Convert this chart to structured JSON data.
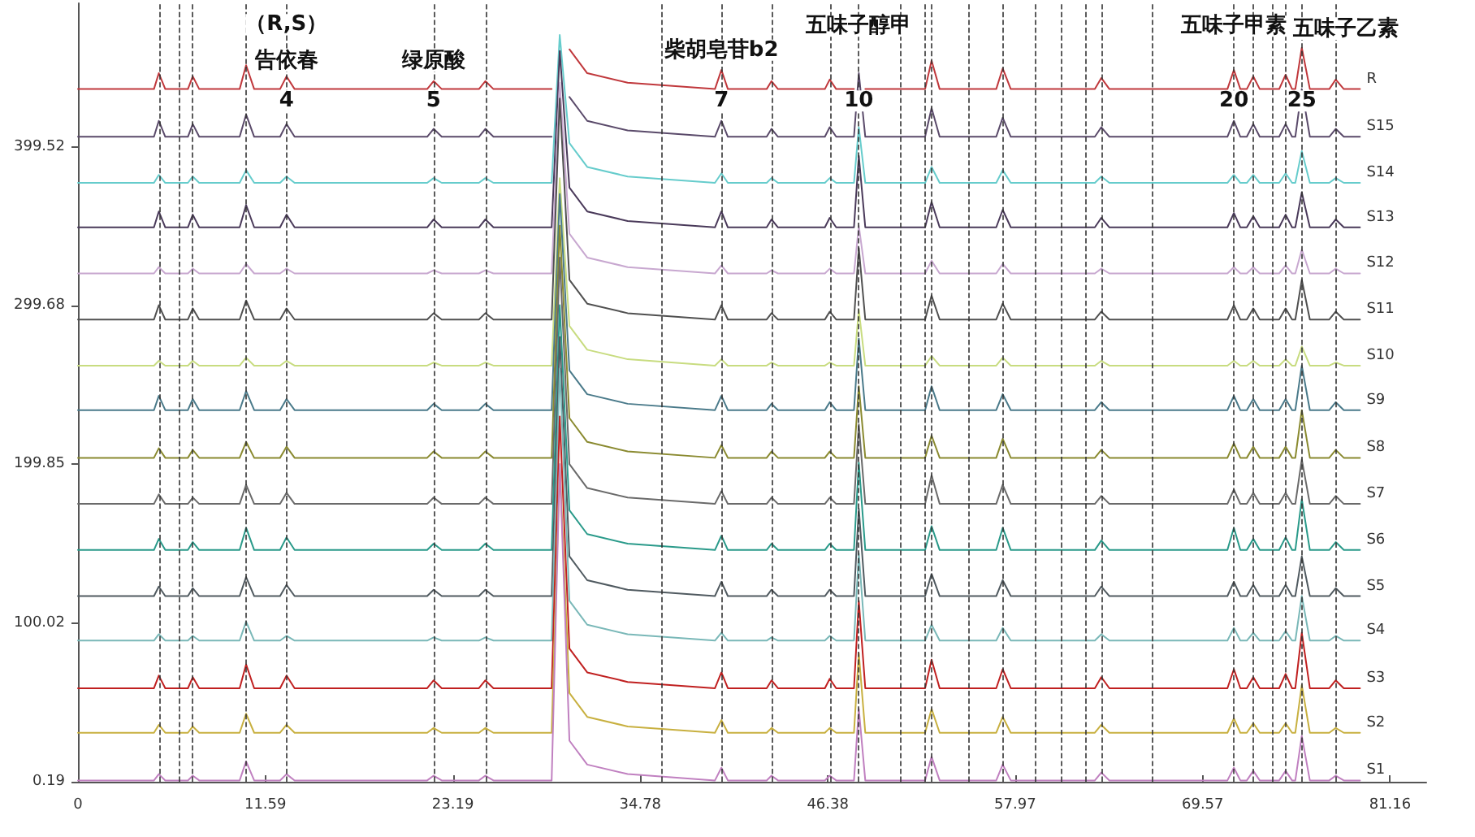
{
  "chart_data": {
    "type": "line",
    "x": [
      0,
      4.7,
      5.0,
      5.4,
      6.8,
      7.1,
      7.5,
      10.0,
      10.4,
      10.9,
      12.5,
      12.9,
      13.4,
      21.6,
      22.0,
      22.5,
      24.8,
      25.2,
      25.7,
      29.3,
      29.8,
      30.4,
      31.5,
      34.0,
      39.4,
      39.8,
      40.2,
      42.6,
      42.9,
      43.3,
      46.2,
      46.5,
      46.9,
      48.0,
      48.3,
      48.7,
      52.4,
      52.8,
      53.3,
      56.8,
      57.2,
      57.7,
      62.9,
      63.3,
      63.8,
      71.1,
      71.5,
      71.9,
      72.3,
      72.7,
      73.1,
      74.3,
      74.7,
      75.1,
      75.3,
      75.7,
      76.2,
      77.4,
      77.8,
      78.3,
      79.3
    ],
    "series": [
      {
        "name": "R",
        "color": "#c0383c",
        "values": [
          436,
          436,
          446,
          436,
          436,
          444,
          436,
          436,
          451,
          436,
          436,
          444,
          436,
          436,
          441,
          436,
          436,
          441,
          436,
          436,
          null,
          461,
          446,
          440,
          436,
          448,
          436,
          436,
          441,
          436,
          436,
          442,
          436,
          436,
          null,
          436,
          436,
          454,
          436,
          436,
          449,
          436,
          436,
          443,
          436,
          436,
          448,
          436,
          436,
          444,
          436,
          436,
          445,
          436,
          436,
          462,
          436,
          436,
          442,
          436,
          436
        ]
      },
      {
        "name": "S15",
        "color": "#5a4a6a",
        "values": [
          406,
          406,
          416,
          406,
          406,
          414,
          406,
          406,
          420,
          406,
          406,
          414,
          406,
          406,
          411,
          406,
          406,
          411,
          406,
          406,
          null,
          431,
          416,
          410,
          406,
          416,
          406,
          406,
          411,
          406,
          406,
          412,
          406,
          406,
          446,
          406,
          406,
          424,
          406,
          406,
          418,
          406,
          406,
          412,
          406,
          406,
          416,
          406,
          406,
          414,
          406,
          406,
          414,
          406,
          406,
          436,
          406,
          406,
          411,
          406,
          406
        ]
      },
      {
        "name": "S14",
        "color": "#66cccc",
        "values": [
          377,
          377,
          382,
          377,
          377,
          381,
          377,
          377,
          385,
          377,
          377,
          381,
          377,
          377,
          380,
          377,
          377,
          380,
          377,
          377,
          470,
          402,
          387,
          381,
          377,
          383,
          377,
          377,
          380,
          377,
          377,
          380,
          377,
          377,
          412,
          377,
          377,
          387,
          377,
          377,
          385,
          377,
          377,
          381,
          377,
          377,
          382,
          377,
          377,
          382,
          377,
          377,
          383,
          377,
          377,
          397,
          377,
          377,
          380,
          377,
          377
        ]
      },
      {
        "name": "S13",
        "color": "#4a3a5a",
        "values": [
          349,
          349,
          359,
          349,
          349,
          357,
          349,
          349,
          363,
          349,
          349,
          357,
          349,
          349,
          354,
          349,
          349,
          354,
          349,
          349,
          460,
          374,
          359,
          353,
          349,
          359,
          349,
          349,
          354,
          349,
          349,
          355,
          349,
          349,
          394,
          349,
          349,
          365,
          349,
          349,
          360,
          349,
          349,
          355,
          349,
          349,
          358,
          349,
          349,
          356,
          349,
          349,
          357,
          349,
          349,
          371,
          349,
          349,
          354,
          349,
          349
        ]
      },
      {
        "name": "S12",
        "color": "#c8a8d0",
        "values": [
          320,
          320,
          324,
          320,
          320,
          323,
          320,
          320,
          326,
          320,
          320,
          323,
          320,
          320,
          322,
          320,
          320,
          322,
          320,
          320,
          440,
          345,
          330,
          324,
          320,
          325,
          320,
          320,
          322,
          320,
          320,
          323,
          320,
          320,
          350,
          320,
          320,
          328,
          320,
          320,
          326,
          320,
          320,
          323,
          320,
          320,
          324,
          320,
          320,
          324,
          320,
          320,
          325,
          320,
          320,
          335,
          320,
          320,
          323,
          320,
          320
        ]
      },
      {
        "name": "S11",
        "color": "#505050",
        "values": [
          291,
          291,
          300,
          291,
          291,
          298,
          291,
          291,
          303,
          291,
          291,
          298,
          291,
          291,
          295,
          291,
          291,
          295,
          291,
          291,
          430,
          316,
          301,
          295,
          291,
          300,
          291,
          291,
          295,
          291,
          291,
          296,
          291,
          291,
          336,
          291,
          291,
          306,
          291,
          291,
          301,
          291,
          291,
          296,
          291,
          291,
          300,
          291,
          291,
          298,
          291,
          291,
          298,
          291,
          291,
          316,
          291,
          291,
          296,
          291,
          291
        ]
      },
      {
        "name": "S10",
        "color": "#c8dc80",
        "values": [
          262,
          262,
          265,
          262,
          262,
          265,
          262,
          262,
          267,
          262,
          262,
          265,
          262,
          262,
          264,
          262,
          262,
          264,
          262,
          262,
          380,
          287,
          272,
          266,
          262,
          266,
          262,
          262,
          264,
          262,
          262,
          264,
          262,
          262,
          297,
          262,
          262,
          268,
          262,
          262,
          267,
          262,
          262,
          265,
          262,
          262,
          265,
          262,
          262,
          265,
          262,
          262,
          266,
          262,
          262,
          274,
          262,
          262,
          264,
          262,
          262
        ]
      },
      {
        "name": "S9",
        "color": "#4a7a8a",
        "values": [
          234,
          234,
          243,
          234,
          234,
          241,
          234,
          234,
          246,
          234,
          234,
          241,
          234,
          234,
          238,
          234,
          234,
          238,
          234,
          234,
          370,
          259,
          244,
          238,
          234,
          243,
          234,
          234,
          238,
          234,
          234,
          239,
          234,
          234,
          279,
          234,
          234,
          249,
          234,
          234,
          244,
          234,
          234,
          239,
          234,
          234,
          243,
          234,
          234,
          241,
          234,
          234,
          241,
          234,
          234,
          262,
          234,
          234,
          239,
          234,
          234
        ]
      },
      {
        "name": "S8",
        "color": "#8a8a30",
        "values": [
          204,
          204,
          210,
          204,
          204,
          209,
          204,
          204,
          214,
          204,
          204,
          211,
          204,
          204,
          208,
          204,
          204,
          208,
          204,
          204,
          350,
          229,
          214,
          208,
          204,
          212,
          204,
          204,
          208,
          204,
          204,
          208,
          204,
          204,
          249,
          204,
          204,
          218,
          204,
          204,
          216,
          204,
          204,
          209,
          204,
          204,
          213,
          204,
          204,
          211,
          204,
          204,
          211,
          204,
          204,
          234,
          204,
          204,
          209,
          204,
          204
        ]
      },
      {
        "name": "S7",
        "color": "#6a6a6a",
        "values": [
          175,
          175,
          181,
          175,
          175,
          179,
          175,
          175,
          187,
          175,
          175,
          182,
          175,
          175,
          179,
          175,
          175,
          179,
          175,
          175,
          330,
          200,
          185,
          179,
          175,
          183,
          175,
          175,
          179,
          175,
          175,
          179,
          175,
          175,
          225,
          175,
          175,
          193,
          175,
          175,
          187,
          175,
          175,
          180,
          175,
          175,
          184,
          175,
          175,
          182,
          175,
          175,
          182,
          175,
          175,
          203,
          175,
          175,
          180,
          175,
          175
        ]
      },
      {
        "name": "S6",
        "color": "#2a9a8a",
        "values": [
          146,
          146,
          153,
          146,
          146,
          151,
          146,
          146,
          160,
          146,
          146,
          154,
          146,
          146,
          150,
          146,
          146,
          150,
          146,
          146,
          300,
          171,
          156,
          150,
          146,
          155,
          146,
          146,
          150,
          146,
          146,
          150,
          146,
          146,
          201,
          146,
          146,
          161,
          146,
          146,
          160,
          146,
          146,
          152,
          146,
          146,
          160,
          146,
          146,
          153,
          146,
          146,
          154,
          146,
          146,
          178,
          146,
          146,
          151,
          146,
          146
        ]
      },
      {
        "name": "S5",
        "color": "#505a60",
        "values": [
          117,
          117,
          123,
          117,
          117,
          122,
          117,
          117,
          129,
          117,
          117,
          124,
          117,
          117,
          121,
          117,
          117,
          121,
          117,
          117,
          280,
          142,
          127,
          121,
          117,
          126,
          117,
          117,
          121,
          117,
          117,
          121,
          117,
          117,
          172,
          117,
          117,
          131,
          117,
          117,
          127,
          117,
          117,
          123,
          117,
          117,
          126,
          117,
          117,
          124,
          117,
          117,
          124,
          117,
          117,
          142,
          117,
          117,
          122,
          117,
          117
        ]
      },
      {
        "name": "S4",
        "color": "#7ab8b8",
        "values": [
          89,
          89,
          93,
          89,
          89,
          92,
          89,
          89,
          101,
          89,
          89,
          92,
          89,
          89,
          91,
          89,
          89,
          91,
          89,
          89,
          260,
          114,
          99,
          93,
          89,
          94,
          89,
          89,
          91,
          89,
          89,
          92,
          89,
          89,
          144,
          89,
          89,
          99,
          89,
          89,
          97,
          89,
          89,
          93,
          89,
          89,
          97,
          89,
          89,
          94,
          89,
          89,
          95,
          89,
          89,
          117,
          89,
          89,
          92,
          89,
          89
        ]
      },
      {
        "name": "S3",
        "color": "#c02020",
        "values": [
          59,
          59,
          67,
          59,
          59,
          66,
          59,
          59,
          74,
          59,
          59,
          67,
          59,
          59,
          64,
          59,
          59,
          64,
          59,
          59,
          230,
          84,
          69,
          63,
          59,
          69,
          59,
          59,
          64,
          59,
          59,
          65,
          59,
          59,
          114,
          59,
          59,
          77,
          59,
          59,
          71,
          59,
          59,
          66,
          59,
          59,
          71,
          59,
          59,
          66,
          59,
          59,
          68,
          59,
          59,
          94,
          59,
          59,
          64,
          59,
          59
        ]
      },
      {
        "name": "S2",
        "color": "#c8b040",
        "values": [
          31,
          31,
          36,
          31,
          31,
          35,
          31,
          31,
          43,
          31,
          31,
          36,
          31,
          31,
          34,
          31,
          31,
          34,
          31,
          31,
          200,
          56,
          41,
          35,
          31,
          39,
          31,
          31,
          34,
          31,
          31,
          34,
          31,
          31,
          81,
          31,
          31,
          46,
          31,
          31,
          41,
          31,
          31,
          36,
          31,
          31,
          40,
          31,
          31,
          37,
          31,
          31,
          37,
          31,
          31,
          61,
          31,
          31,
          34,
          31,
          31
        ]
      },
      {
        "name": "S1",
        "color": "#c080c0",
        "values": [
          1,
          1,
          5,
          1,
          1,
          4,
          1,
          1,
          13,
          1,
          1,
          5,
          1,
          1,
          4,
          1,
          1,
          4,
          1,
          1,
          200,
          26,
          11,
          5,
          1,
          9,
          1,
          1,
          4,
          1,
          1,
          4,
          1,
          1,
          46,
          1,
          1,
          16,
          1,
          1,
          11,
          1,
          1,
          6,
          1,
          1,
          9,
          1,
          1,
          7,
          1,
          1,
          7,
          1,
          1,
          29,
          1,
          1,
          4,
          1,
          1
        ]
      }
    ],
    "xlim": [
      0,
      83.4
    ],
    "xticks": [
      0,
      11.59,
      23.19,
      34.78,
      46.38,
      57.97,
      69.57,
      81.16
    ],
    "ylim": [
      0.19,
      490
    ],
    "yticks": [
      0.19,
      100.02,
      199.85,
      299.68,
      399.52
    ],
    "ref_lines": [
      {
        "axis": "x",
        "value": 5.0,
        "color": "#333333",
        "line_style": "dashed"
      },
      {
        "axis": "x",
        "value": 6.3,
        "color": "#333333",
        "line_style": "dashed"
      },
      {
        "axis": "x",
        "value": 7.1,
        "color": "#333333",
        "line_style": "dashed"
      },
      {
        "axis": "x",
        "value": 10.4,
        "color": "#333333",
        "line_style": "dashed"
      },
      {
        "axis": "x",
        "value": 12.9,
        "color": "#333333",
        "line_style": "dashed"
      },
      {
        "axis": "x",
        "value": 22.0,
        "color": "#333333",
        "line_style": "dashed"
      },
      {
        "axis": "x",
        "value": 25.2,
        "color": "#333333",
        "line_style": "dashed"
      },
      {
        "axis": "x",
        "value": 36.1,
        "color": "#333333",
        "line_style": "dashed"
      },
      {
        "axis": "x",
        "value": 39.8,
        "color": "#333333",
        "line_style": "dashed"
      },
      {
        "axis": "x",
        "value": 42.9,
        "color": "#333333",
        "line_style": "dashed"
      },
      {
        "axis": "x",
        "value": 46.5,
        "color": "#333333",
        "line_style": "dashed"
      },
      {
        "axis": "x",
        "value": 48.3,
        "color": "#333333",
        "line_style": "dashed"
      },
      {
        "axis": "x",
        "value": 50.9,
        "color": "#333333",
        "line_style": "dashed"
      },
      {
        "axis": "x",
        "value": 52.4,
        "color": "#333333",
        "line_style": "dashed"
      },
      {
        "axis": "x",
        "value": 52.8,
        "color": "#333333",
        "line_style": "dashed"
      },
      {
        "axis": "x",
        "value": 55.1,
        "color": "#333333",
        "line_style": "dashed"
      },
      {
        "axis": "x",
        "value": 57.2,
        "color": "#333333",
        "line_style": "dashed"
      },
      {
        "axis": "x",
        "value": 59.2,
        "color": "#333333",
        "line_style": "dashed"
      },
      {
        "axis": "x",
        "value": 60.8,
        "color": "#333333",
        "line_style": "dashed"
      },
      {
        "axis": "x",
        "value": 62.3,
        "color": "#333333",
        "line_style": "dashed"
      },
      {
        "axis": "x",
        "value": 63.3,
        "color": "#333333",
        "line_style": "dashed"
      },
      {
        "axis": "x",
        "value": 66.4,
        "color": "#333333",
        "line_style": "dashed"
      },
      {
        "axis": "x",
        "value": 71.5,
        "color": "#333333",
        "line_style": "dashed"
      },
      {
        "axis": "x",
        "value": 72.7,
        "color": "#333333",
        "line_style": "dashed"
      },
      {
        "axis": "x",
        "value": 73.9,
        "color": "#333333",
        "line_style": "dashed"
      },
      {
        "axis": "x",
        "value": 74.7,
        "color": "#333333",
        "line_style": "dashed"
      },
      {
        "axis": "x",
        "value": 75.7,
        "color": "#333333",
        "line_style": "dashed"
      },
      {
        "axis": "x",
        "value": 77.8,
        "color": "#333333",
        "line_style": "dashed"
      }
    ],
    "annotations": [
      {
        "text": "（R,S）",
        "x": 12.9,
        "y": 475
      },
      {
        "text": "告依春",
        "x": 12.9,
        "y": 452
      },
      {
        "text": "4",
        "x": 12.9,
        "y": 427
      },
      {
        "text": "绿原酸",
        "x": 22.0,
        "y": 452
      },
      {
        "text": "5",
        "x": 22.0,
        "y": 427
      },
      {
        "text": "柴胡皂苷b2",
        "x": 39.8,
        "y": 459
      },
      {
        "text": "7",
        "x": 39.8,
        "y": 427
      },
      {
        "text": "五味子醇甲",
        "x": 48.3,
        "y": 474
      },
      {
        "text": "10",
        "x": 48.3,
        "y": 427
      },
      {
        "text": "五味子甲素",
        "x": 71.5,
        "y": 474
      },
      {
        "text": "20",
        "x": 71.5,
        "y": 427
      },
      {
        "text": "五味子乙素",
        "x": 75.7,
        "y": 472
      },
      {
        "text": "25",
        "x": 75.7,
        "y": 427
      }
    ],
    "grid": false,
    "legend": false,
    "marker": "none",
    "line_style": "solid"
  }
}
